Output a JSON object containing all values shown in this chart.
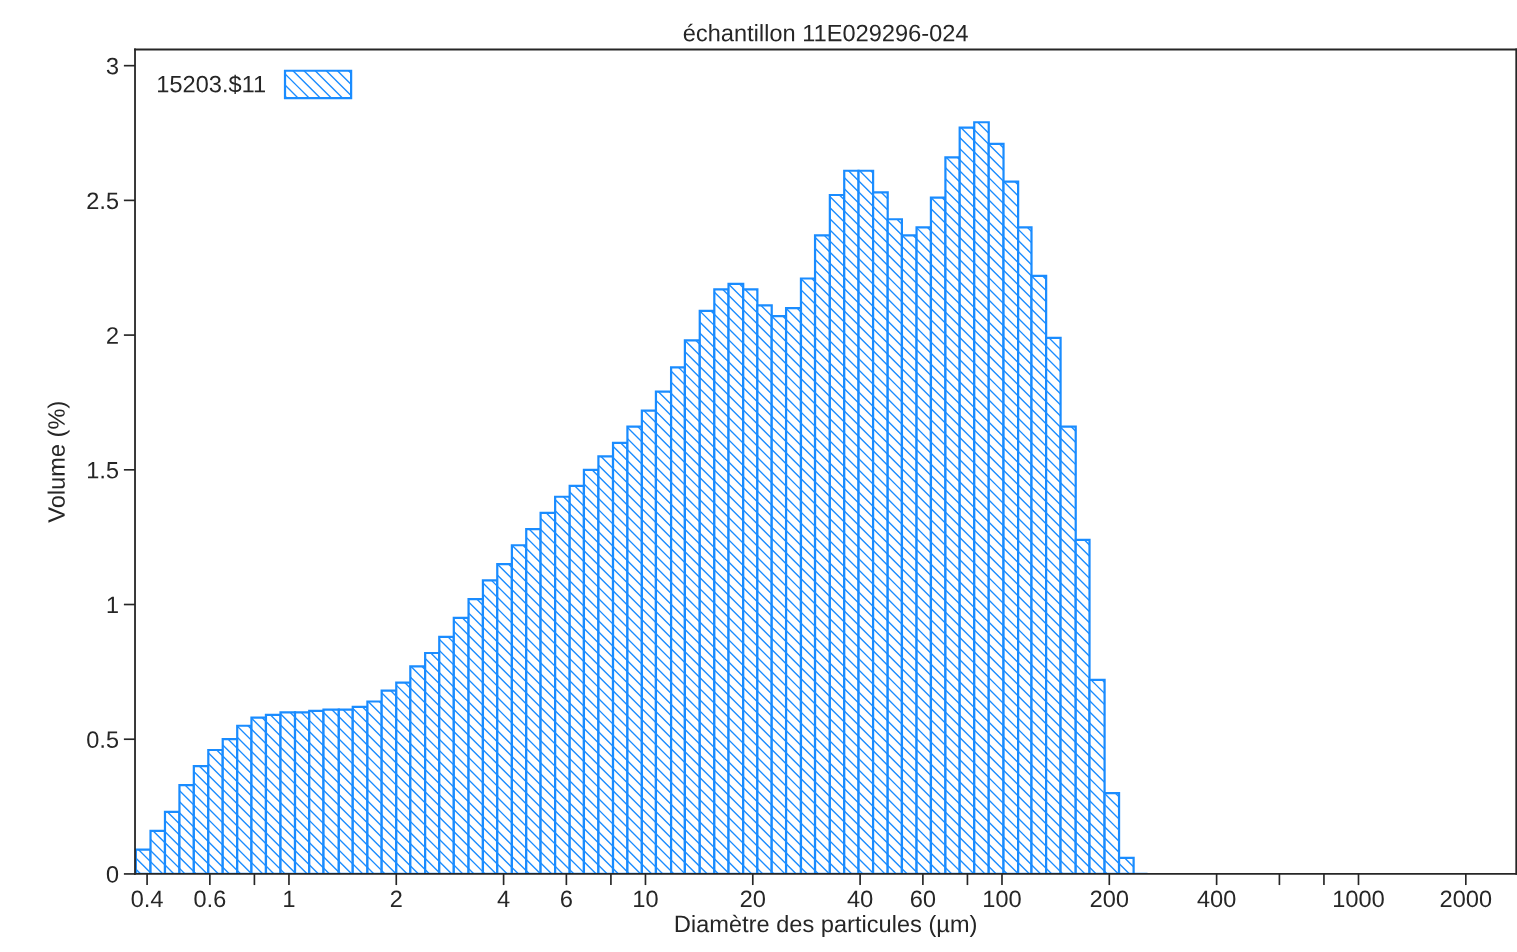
{
  "chart_data": {
    "type": "histogram",
    "title": "échantillon 11E029296-024",
    "xlabel": "Diamètre des particules (µm)",
    "ylabel": "Volume (%)",
    "log": "x",
    "legend": "top left",
    "grid": false,
    "bins": [
      0.372,
      0.409,
      0.449,
      0.493,
      0.541,
      0.594,
      0.652,
      0.716,
      0.785,
      0.862,
      0.947,
      1.04,
      1.14,
      1.25,
      1.38,
      1.51,
      1.66,
      1.82,
      2.0,
      2.19,
      2.41,
      2.64,
      2.9,
      3.19,
      3.5,
      3.84,
      4.22,
      4.63,
      5.08,
      5.58,
      6.13,
      6.72,
      7.38,
      8.11,
      8.9,
      9.77,
      10.7,
      11.8,
      12.9,
      14.2,
      15.6,
      17.1,
      18.8,
      20.6,
      22.6,
      24.8,
      27.3,
      29.9,
      32.9,
      36.1,
      39.6,
      43.5,
      47.8,
      52.4,
      57.6,
      63.2,
      69.4,
      76.1,
      83.6,
      91.8,
      101,
      111,
      121,
      133,
      146,
      161,
      176,
      194,
      213,
      234,
      256
    ],
    "series": [
      {
        "name": "15203.$11",
        "color": "#1a8cff",
        "values": [
          0.09,
          0.16,
          0.23,
          0.33,
          0.4,
          0.46,
          0.5,
          0.55,
          0.58,
          0.59,
          0.6,
          0.6,
          0.605,
          0.61,
          0.61,
          0.62,
          0.64,
          0.68,
          0.71,
          0.77,
          0.82,
          0.88,
          0.95,
          1.02,
          1.09,
          1.15,
          1.22,
          1.28,
          1.34,
          1.4,
          1.44,
          1.5,
          1.55,
          1.6,
          1.66,
          1.72,
          1.79,
          1.88,
          1.98,
          2.09,
          2.17,
          2.19,
          2.17,
          2.11,
          2.07,
          2.1,
          2.21,
          2.37,
          2.52,
          2.61,
          2.61,
          2.53,
          2.43,
          2.37,
          2.4,
          2.51,
          2.66,
          2.77,
          2.79,
          2.71,
          2.57,
          2.4,
          2.22,
          1.99,
          1.66,
          1.24,
          0.72,
          0.3,
          0.06,
          0
        ]
      }
    ],
    "xlim": [
      0.37,
      2770
    ],
    "xticks": [
      0.4,
      0.6,
      {
        "value": 0.8,
        "label": null
      },
      1,
      2,
      4,
      6,
      {
        "value": 8,
        "label": null
      },
      10,
      20,
      40,
      60,
      {
        "value": 80,
        "label": null
      },
      100,
      200,
      400,
      {
        "value": 600,
        "label": null
      },
      {
        "value": 800,
        "label": null
      },
      1000,
      2000
    ],
    "ylim": [
      0,
      3.06
    ],
    "yticks": [
      0,
      0.5,
      1,
      1.5,
      2,
      2.5,
      3
    ]
  }
}
